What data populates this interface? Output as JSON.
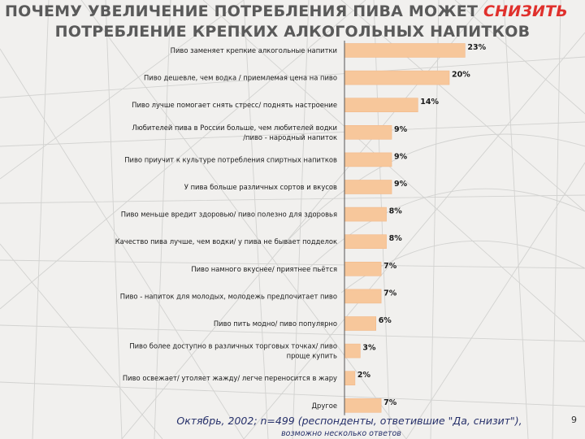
{
  "title": {
    "line1_prefix": "ПОЧЕМУ УВЕЛИЧЕНИЕ ПОТРЕБЛЕНИЯ ПИВА МОЖЕТ ",
    "line1_accent": "СНИЗИТЬ",
    "line2": "ПОТРЕБЛЕНИЕ КРЕПКИХ АЛКОГОЛЬНЫХ НАПИТКОВ"
  },
  "footer": {
    "text": "Октябрь, 2002; n=499 (респонденты, ответившие \"Да, снизит\"),",
    "note": "возможно несколько ответов",
    "page_number": "9"
  },
  "colors": {
    "bar": "#f7c79b",
    "bar_edge": "#f2b98a",
    "accent": "#e0302c",
    "footer": "#26306a"
  },
  "chart_data": {
    "type": "bar",
    "orientation": "horizontal",
    "value_suffix": "%",
    "xlim": [
      0,
      25
    ],
    "grid": false,
    "categories": [
      [
        "Пиво заменяет крепкие алкогольные напитки"
      ],
      [
        "Пиво дешевле, чем водка / приемлемая цена на пиво"
      ],
      [
        "Пиво лучше помогает снять стресс/ поднять настроение"
      ],
      [
        "Любителей пива в России больше, чем любителей водки",
        "/пиво - народный напиток"
      ],
      [
        "Пиво приучит к культуре потребления спиртных напитков"
      ],
      [
        "У пива больше различных сортов и вкусов"
      ],
      [
        "Пиво меньше вредит здоровью/ пиво полезно для здоровья"
      ],
      [
        "Качество пива лучше, чем водки/ у пива не бывает подделок"
      ],
      [
        "Пиво намного вкуснее/ приятнее пьётся"
      ],
      [
        "Пиво - напиток для молодых, молодежь предпочитает пиво"
      ],
      [
        "Пиво пить модно/ пиво популярно"
      ],
      [
        "Пиво более доступно в различных торговых точках/ пиво",
        "проще купить"
      ],
      [
        "Пиво освежает/ утоляет жажду/ легче переносится в жару"
      ],
      [
        "Другое"
      ]
    ],
    "values": [
      23,
      20,
      14,
      9,
      9,
      9,
      8,
      8,
      7,
      7,
      6,
      3,
      2,
      7
    ]
  }
}
